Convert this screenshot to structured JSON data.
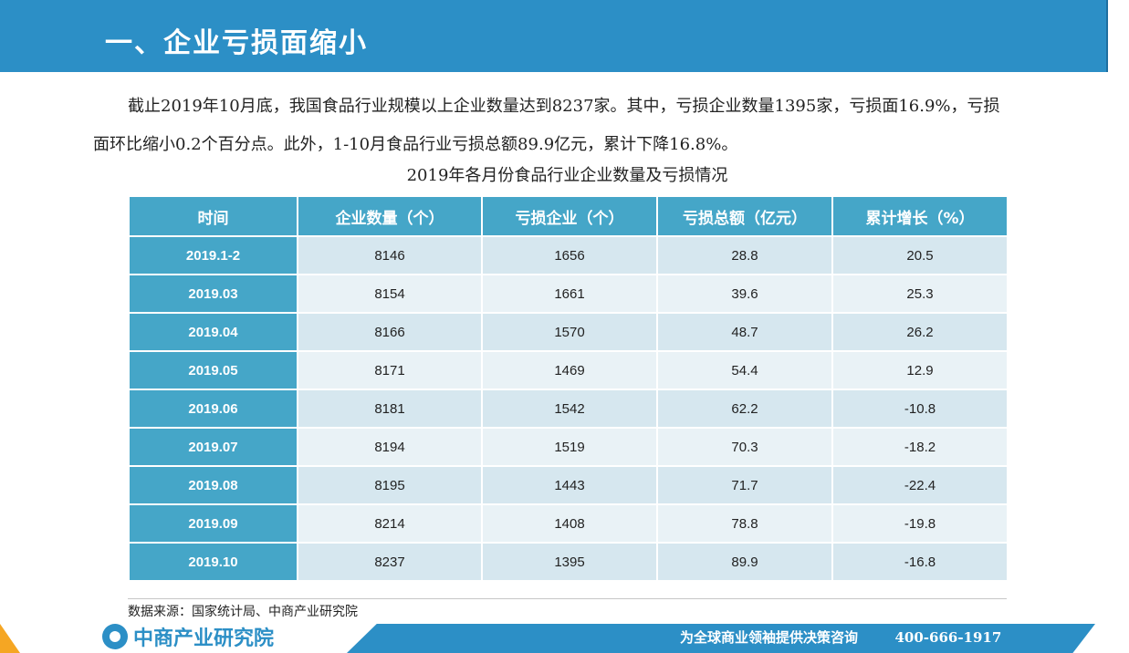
{
  "header": {
    "title": "一、企业亏损面缩小"
  },
  "intro": {
    "paragraph": "截止2019年10月底，我国食品行业规模以上企业数量达到8237家。其中，亏损企业数量1395家，亏损面16.9%，亏损面环比缩小0.2个百分点。此外，1-10月食品行业亏损总额89.9亿元，累计下降16.8%。"
  },
  "table": {
    "caption": "2019年各月份食品行业企业数量及亏损情况",
    "headers": [
      "时间",
      "企业数量（个）",
      "亏损企业（个）",
      "亏损总额（亿元）",
      "累计增长（%）"
    ],
    "rows": [
      [
        "2019.1-2",
        "8146",
        "1656",
        "28.8",
        "20.5"
      ],
      [
        "2019.03",
        "8154",
        "1661",
        "39.6",
        "25.3"
      ],
      [
        "2019.04",
        "8166",
        "1570",
        "48.7",
        "26.2"
      ],
      [
        "2019.05",
        "8171",
        "1469",
        "54.4",
        "12.9"
      ],
      [
        "2019.06",
        "8181",
        "1542",
        "62.2",
        "-10.8"
      ],
      [
        "2019.07",
        "8194",
        "1519",
        "70.3",
        "-18.2"
      ],
      [
        "2019.08",
        "8195",
        "1443",
        "71.7",
        "-22.4"
      ],
      [
        "2019.09",
        "8214",
        "1408",
        "78.8",
        "-19.8"
      ],
      [
        "2019.10",
        "8237",
        "1395",
        "89.9",
        "-16.8"
      ]
    ]
  },
  "source": {
    "text": "数据来源：国家统计局、中商产业研究院"
  },
  "footer": {
    "logo_text": "中商产业研究院",
    "slogan": "为全球商业领袖提供决策咨询",
    "phone": "400-666-1917"
  },
  "colors": {
    "brand_blue": "#2c8fc6",
    "table_header": "#45a6c8",
    "accent_orange": "#f5a623"
  }
}
